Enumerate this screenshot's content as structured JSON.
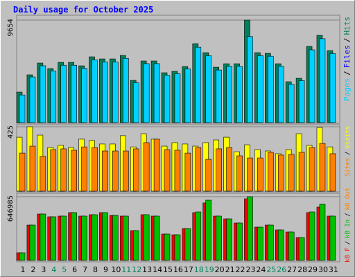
{
  "title": "Daily usage for October 2025",
  "separator": "/",
  "x_label_colors": [
    "#000000",
    "#000000",
    "#000000",
    "#00805c",
    "#00805c",
    "#000000",
    "#000000",
    "#000000",
    "#000000",
    "#000000",
    "#00805c",
    "#00805c",
    "#000000",
    "#000000",
    "#000000",
    "#000000",
    "#000000",
    "#00805c",
    "#00805c",
    "#000000",
    "#000000",
    "#000000",
    "#000000",
    "#000000",
    "#00805c",
    "#00805c",
    "#000000",
    "#000000",
    "#000000",
    "#000000",
    "#000000"
  ],
  "chart_data": [
    {
      "type": "bar",
      "ylim": [
        0,
        9654
      ],
      "yticks": [
        9654
      ],
      "extra_legend": [
        {
          "name": "Files",
          "color": "#0000ff"
        }
      ],
      "series": [
        {
          "name": "Hits",
          "color": "#00805c",
          "values": [
            2869,
            4499,
            5607,
            5086,
            5672,
            5672,
            5346,
            6194,
            5998,
            5998,
            6324,
            3977,
            5803,
            5803,
            4694,
            4825,
            5281,
            7433,
            6585,
            5216,
            5542,
            5542,
            9654,
            6585,
            6520,
            5542,
            3847,
            4173,
            7172,
            8215,
            6781
          ]
        },
        {
          "name": "Pages",
          "color": "#00d0ff",
          "values": [
            2600,
            4300,
            5350,
            4850,
            5400,
            5400,
            5100,
            5900,
            5700,
            5700,
            6050,
            3750,
            5550,
            5550,
            4450,
            4600,
            5050,
            7100,
            6300,
            4950,
            5300,
            5300,
            8100,
            6300,
            6250,
            5300,
            3600,
            3950,
            6850,
            7900,
            6500
          ]
        }
      ]
    },
    {
      "type": "bar",
      "ylim": [
        0,
        425
      ],
      "yticks": [
        425
      ],
      "series": [
        {
          "name": "Visits",
          "color": "#ffff00",
          "values": [
            356,
            425,
            370,
            288,
            302,
            288,
            343,
            334,
            311,
            311,
            366,
            292,
            379,
            343,
            297,
            320,
            311,
            297,
            320,
            338,
            356,
            260,
            306,
            274,
            265,
            247,
            274,
            379,
            302,
            420,
            292
          ]
        },
        {
          "name": "Sites",
          "color": "#ff8000",
          "values": [
            251,
            297,
            229,
            274,
            279,
            270,
            292,
            288,
            265,
            265,
            265,
            279,
            320,
            343,
            274,
            270,
            251,
            288,
            210,
            279,
            288,
            233,
            219,
            219,
            256,
            238,
            242,
            256,
            288,
            315,
            247
          ]
        }
      ]
    },
    {
      "type": "bar",
      "ylim": [
        0,
        646985
      ],
      "yticks": [
        646985
      ],
      "categories": [
        "1",
        "2",
        "3",
        "4",
        "5",
        "6",
        "7",
        "8",
        "9",
        "10",
        "11",
        "12",
        "13",
        "14",
        "15",
        "16",
        "17",
        "18",
        "19",
        "20",
        "21",
        "22",
        "23",
        "24",
        "25",
        "26",
        "27",
        "28",
        "29",
        "30",
        "31"
      ],
      "extra_legend": [
        {
          "name": "kB Out",
          "color": "#ff8000"
        }
      ],
      "series": [
        {
          "name": "kB F",
          "color": "#ff0000",
          "values": [
            77352,
            358632,
            471144,
            443016,
            450048,
            485208,
            450048,
            464112,
            485208,
            457080,
            450048,
            302376,
            464112,
            450048,
            267216,
            260184,
            323472,
            485208,
            583656,
            450048,
            421920,
            379728,
            625889,
            337536,
            358632,
            309408,
            288312,
            232056,
            485208,
            541464,
            450048
          ]
        },
        {
          "name": "kB In",
          "color": "#00c000",
          "values": [
            77352,
            358632,
            471144,
            443016,
            450048,
            485208,
            450048,
            464112,
            485208,
            457080,
            450048,
            302376,
            464112,
            450048,
            267216,
            260184,
            323472,
            492240,
            611784,
            450048,
            421920,
            379728,
            646985,
            337536,
            358632,
            309408,
            288312,
            232056,
            492240,
            569592,
            450048
          ]
        }
      ]
    }
  ]
}
